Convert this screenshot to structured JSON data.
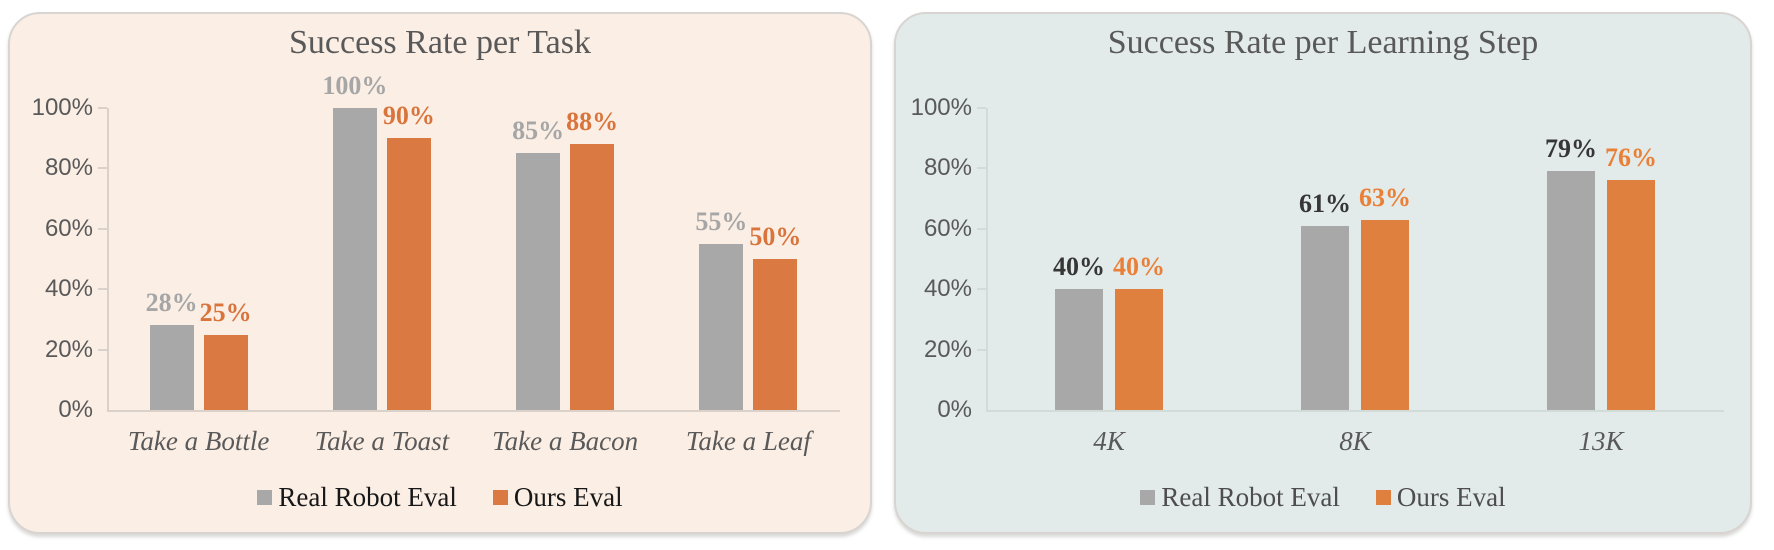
{
  "chart_data": [
    {
      "type": "bar",
      "title": "Success Rate per Task",
      "categories": [
        "Take a Bottle",
        "Take a Toast",
        "Take a Bacon",
        "Take a Leaf"
      ],
      "series": [
        {
          "name": "Real Robot Eval",
          "values": [
            28,
            100,
            85,
            55
          ],
          "labels": [
            "28%",
            "100%",
            "85%",
            "55%"
          ],
          "color": "#a8a8a8",
          "label_color": "#a6a6a6"
        },
        {
          "name": "Ours Eval",
          "values": [
            25,
            90,
            88,
            50
          ],
          "labels": [
            "25%",
            "90%",
            "88%",
            "50%"
          ],
          "color": "#db7942",
          "label_color": "#d9753c"
        }
      ],
      "y_axis": {
        "ticks": [
          "100%",
          "80%",
          "60%",
          "40%",
          "20%",
          "0%"
        ],
        "values": [
          100,
          80,
          60,
          40,
          20,
          0
        ],
        "ylim": [
          0,
          100
        ],
        "grid": false
      },
      "legend": {
        "position": "bottom",
        "entries": [
          "Real Robot Eval",
          "Ours Eval"
        ],
        "text_color": "#171717"
      },
      "panel_bg": "#fbeee5",
      "axis_color": "#d9d1ca",
      "tick_label_color": "#595959",
      "category_color": "#595959",
      "title_color": "#595959"
    },
    {
      "type": "bar",
      "title": "Success Rate per Learning Step",
      "categories": [
        "4K",
        "8K",
        "13K"
      ],
      "series": [
        {
          "name": "Real Robot Eval",
          "values": [
            40,
            61,
            79
          ],
          "labels": [
            "40%",
            "61%",
            "79%"
          ],
          "color": "#a8a8a8",
          "label_color": "#363636"
        },
        {
          "name": "Ours Eval",
          "values": [
            40,
            63,
            76
          ],
          "labels": [
            "40%",
            "63%",
            "76%"
          ],
          "color": "#e0803f",
          "label_color": "#ea8038"
        }
      ],
      "y_axis": {
        "ticks": [
          "100%",
          "80%",
          "60%",
          "40%",
          "20%",
          "0%"
        ],
        "values": [
          100,
          80,
          60,
          40,
          20,
          0
        ],
        "ylim": [
          0,
          100
        ],
        "grid": false
      },
      "legend": {
        "position": "bottom",
        "entries": [
          "Real Robot Eval",
          "Ours Eval"
        ],
        "text_color": "#4d4d4d"
      },
      "panel_bg": "#e2ebe9",
      "axis_color": "#d1dbd7",
      "tick_label_color": "#595959",
      "category_color": "#595959",
      "title_color": "#595959"
    }
  ]
}
